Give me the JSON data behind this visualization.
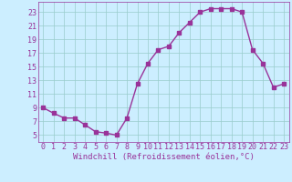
{
  "x": [
    0,
    1,
    2,
    3,
    4,
    5,
    6,
    7,
    8,
    9,
    10,
    11,
    12,
    13,
    14,
    15,
    16,
    17,
    18,
    19,
    20,
    21,
    22,
    23
  ],
  "y": [
    9,
    8.2,
    7.5,
    7.5,
    6.5,
    5.5,
    5.3,
    5.0,
    7.5,
    12.5,
    15.5,
    17.5,
    18.0,
    20.0,
    21.5,
    23.0,
    23.5,
    23.5,
    23.5,
    23.0,
    17.5,
    15.5,
    12.0,
    12.5
  ],
  "line_color": "#993399",
  "marker": "s",
  "marker_size": 2.2,
  "bg_color": "#cceeff",
  "grid_color": "#99cccc",
  "xlabel": "Windchill (Refroidissement éolien,°C)",
  "xlim": [
    -0.5,
    23.5
  ],
  "ylim": [
    4,
    24.5
  ],
  "xticks": [
    0,
    1,
    2,
    3,
    4,
    5,
    6,
    7,
    8,
    9,
    10,
    11,
    12,
    13,
    14,
    15,
    16,
    17,
    18,
    19,
    20,
    21,
    22,
    23
  ],
  "yticks": [
    5,
    7,
    9,
    11,
    13,
    15,
    17,
    19,
    21,
    23
  ],
  "xlabel_fontsize": 6.5,
  "tick_fontsize": 6,
  "line_width": 1.0
}
